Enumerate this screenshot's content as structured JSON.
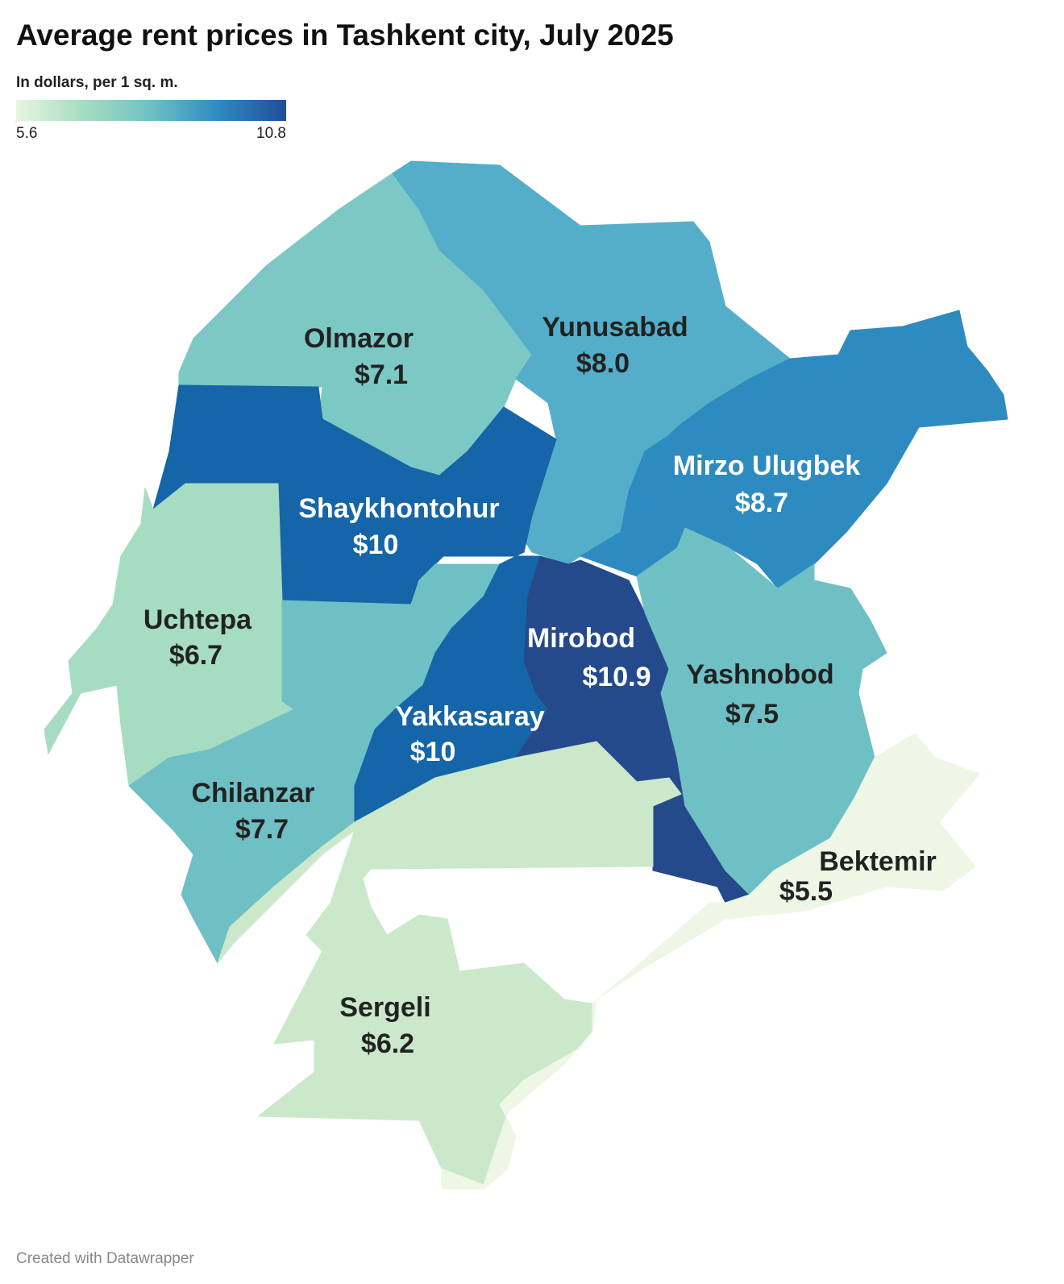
{
  "chart_data": {
    "type": "choropleth",
    "title": "Average rent prices in Tashkent city, July 2025",
    "subtitle": "In dollars, per 1 sq. m.",
    "legend": {
      "min": 5.6,
      "max": 10.8,
      "colors": [
        "#e8f5e0",
        "#a6dcc1",
        "#6fc0c4",
        "#2e8bc0",
        "#1f4e9a"
      ]
    },
    "regions": [
      {
        "name": "Olmazor",
        "value": 7.1,
        "value_label": "$7.1",
        "color": "#7cc8c4"
      },
      {
        "name": "Yunusabad",
        "value": 8.0,
        "value_label": "$8.0",
        "color": "#55aec9"
      },
      {
        "name": "Mirzo Ulugbek",
        "value": 8.7,
        "value_label": "$8.7",
        "color": "#2e8bc0"
      },
      {
        "name": "Shaykhontohur",
        "value": 10,
        "value_label": "$10",
        "color": "#1565a8"
      },
      {
        "name": "Uchtepa",
        "value": 6.7,
        "value_label": "$6.7",
        "color": "#a6dcc1"
      },
      {
        "name": "Chilanzar",
        "value": 7.7,
        "value_label": "$7.7",
        "color": "#6fc0c4"
      },
      {
        "name": "Yakkasaray",
        "value": 10,
        "value_label": "$10",
        "color": "#1565a8"
      },
      {
        "name": "Mirobod",
        "value": 10.9,
        "value_label": "$10.9",
        "color": "#254a8b"
      },
      {
        "name": "Yashnobod",
        "value": 7.5,
        "value_label": "$7.5",
        "color": "#6fc0c4"
      },
      {
        "name": "Sergeli",
        "value": 6.2,
        "value_label": "$6.2",
        "color": "#cbe8cb"
      },
      {
        "name": "Bektemir",
        "value": 5.5,
        "value_label": "$5.5",
        "color": "#eef7e6"
      }
    ],
    "footer": "Created with Datawrapper"
  }
}
